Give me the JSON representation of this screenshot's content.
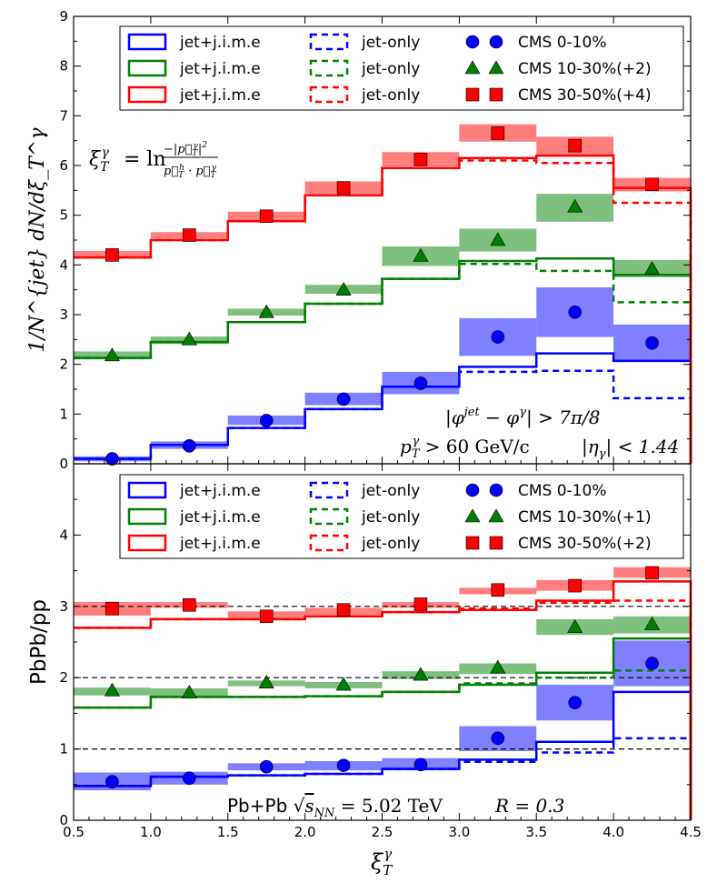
{
  "chart_data": [
    {
      "type": "step",
      "name": "top",
      "ylabel": "1/N^{jet} dN/dξ_T^γ",
      "ylim": [
        0,
        9
      ],
      "xlim": [
        0.5,
        4.5
      ],
      "yticks": [
        "0",
        "1",
        "2",
        "3",
        "4",
        "5",
        "6",
        "7",
        "8",
        "9"
      ],
      "bin_edges": [
        0.5,
        1.0,
        1.5,
        2.0,
        2.5,
        3.0,
        3.5,
        4.0,
        4.5
      ],
      "centers": [
        0.75,
        1.25,
        1.75,
        2.25,
        2.75,
        3.25,
        3.75,
        4.25
      ],
      "formula_lhs": "ξ",
      "formula_sub": "T",
      "formula_sup": "γ",
      "formula_eq": "= ln",
      "formula_num": "−|p⃗",
      "formula_den": "p⃗",
      "formula_num_tail": "|",
      "formula_den_dot": "·",
      "ann_dphi": "|φ",
      "ann_dphi_sup1": "jet",
      "ann_dphi_mid": " − φ",
      "ann_dphi_sup2": "γ",
      "ann_dphi_tail": "| > 7π/8",
      "ann_pt": "p",
      "ann_pt_tail": " > 60 GeV/c",
      "ann_eta": "|η",
      "ann_eta_tail": "| < 1.44",
      "legend": {
        "model_label": "jet+j.i.m.e",
        "jetonly_label": "jet-only",
        "cms_labels": [
          "CMS 0-10%",
          "CMS 10-30%(+2)",
          "CMS 30-50%(+4)"
        ]
      },
      "series": [
        {
          "name": "0-10%",
          "color": "#0000ff",
          "marker": "circle",
          "model": [
            0.1,
            0.38,
            0.72,
            1.1,
            1.55,
            1.95,
            2.22,
            2.07
          ],
          "jet_only": [
            0.1,
            0.38,
            0.72,
            1.1,
            1.55,
            1.85,
            1.87,
            1.32
          ],
          "cms": [
            0.1,
            0.36,
            0.87,
            1.3,
            1.62,
            2.55,
            3.05,
            2.43
          ],
          "band": [
            [
              0.05,
              0.15
            ],
            [
              0.3,
              0.45
            ],
            [
              0.78,
              0.97
            ],
            [
              1.18,
              1.43
            ],
            [
              1.4,
              1.85
            ],
            [
              2.17,
              2.93
            ],
            [
              2.55,
              3.55
            ],
            [
              2.05,
              2.8
            ]
          ]
        },
        {
          "name": "10-30%(+2)",
          "color": "#008000",
          "marker": "triangle",
          "model": [
            2.13,
            2.45,
            2.85,
            3.22,
            3.72,
            4.08,
            4.13,
            3.8
          ],
          "jet_only": [
            2.13,
            2.45,
            2.85,
            3.22,
            3.72,
            4.02,
            3.88,
            3.25
          ],
          "cms": [
            2.18,
            2.5,
            3.05,
            3.5,
            4.18,
            4.5,
            5.17,
            3.92
          ],
          "band": [
            [
              2.1,
              2.26
            ],
            [
              2.41,
              2.56
            ],
            [
              2.98,
              3.12
            ],
            [
              3.42,
              3.6
            ],
            [
              3.98,
              4.37
            ],
            [
              4.27,
              4.73
            ],
            [
              4.87,
              5.43
            ],
            [
              3.75,
              4.1
            ]
          ]
        },
        {
          "name": "30-50%(+4)",
          "color": "#ff0000",
          "marker": "square",
          "model": [
            4.15,
            4.5,
            4.88,
            5.4,
            5.95,
            6.15,
            6.2,
            5.55
          ],
          "jet_only": [
            4.15,
            4.5,
            4.88,
            5.4,
            5.95,
            6.1,
            6.05,
            5.25
          ],
          "cms": [
            4.2,
            4.6,
            4.98,
            5.55,
            6.12,
            6.65,
            6.4,
            5.62
          ],
          "band": [
            [
              4.13,
              4.28
            ],
            [
              4.53,
              4.66
            ],
            [
              4.9,
              5.07
            ],
            [
              5.43,
              5.68
            ],
            [
              5.98,
              6.27
            ],
            [
              6.48,
              6.83
            ],
            [
              6.2,
              6.58
            ],
            [
              5.48,
              5.75
            ]
          ]
        }
      ]
    },
    {
      "type": "step",
      "name": "bottom",
      "ylabel": "PbPb/pp",
      "xlabel": "ξ_T^γ",
      "ylim": [
        0,
        5
      ],
      "xlim": [
        0.5,
        4.5
      ],
      "yticks": [
        "0",
        "1",
        "2",
        "3",
        "4"
      ],
      "xticks": [
        "0.5",
        "1.0",
        "1.5",
        "2.0",
        "2.5",
        "3.0",
        "3.5",
        "4.0",
        "4.5"
      ],
      "bin_edges": [
        0.5,
        1.0,
        1.5,
        2.0,
        2.5,
        3.0,
        3.5,
        4.0,
        4.5
      ],
      "centers": [
        0.75,
        1.25,
        1.75,
        2.25,
        2.75,
        3.25,
        3.75,
        4.25
      ],
      "reference_lines": [
        1,
        2,
        3
      ],
      "ann_system": "Pb+Pb",
      "ann_energy_sqrt": "√",
      "ann_energy_s": "s",
      "ann_energy_sub": "NN",
      "ann_energy_tail": " = 5.02 TeV",
      "ann_r": "R = 0.3",
      "legend": {
        "model_label": "jet+j.i.m.e",
        "jetonly_label": "jet-only",
        "cms_labels": [
          "CMS 0-10%",
          "CMS 10-30%(+1)",
          "CMS 30-50%(+2)"
        ]
      },
      "series": [
        {
          "name": "0-10%",
          "color": "#0000ff",
          "marker": "circle",
          "model": [
            0.48,
            0.61,
            0.63,
            0.65,
            0.72,
            0.85,
            1.1,
            1.8
          ],
          "jet_only": [
            0.48,
            0.61,
            0.63,
            0.65,
            0.72,
            0.82,
            0.95,
            1.15
          ],
          "cms": [
            0.54,
            0.59,
            0.75,
            0.77,
            0.78,
            1.15,
            1.65,
            2.2
          ],
          "band": [
            [
              0.42,
              0.67
            ],
            [
              0.5,
              0.68
            ],
            [
              0.7,
              0.8
            ],
            [
              0.7,
              0.83
            ],
            [
              0.7,
              0.87
            ],
            [
              0.97,
              1.32
            ],
            [
              1.4,
              1.9
            ],
            [
              1.88,
              2.52
            ]
          ]
        },
        {
          "name": "10-30%(+1)",
          "color": "#008000",
          "marker": "triangle",
          "model": [
            1.58,
            1.73,
            1.73,
            1.74,
            1.8,
            1.9,
            2.07,
            2.55
          ],
          "jet_only": [
            1.58,
            1.73,
            1.73,
            1.74,
            1.8,
            1.92,
            2.0,
            2.1
          ],
          "cms": [
            1.82,
            1.79,
            1.93,
            1.9,
            2.04,
            2.14,
            2.71,
            2.75
          ],
          "band": [
            [
              1.75,
              1.86
            ],
            [
              1.74,
              1.85
            ],
            [
              1.88,
              1.96
            ],
            [
              1.85,
              1.94
            ],
            [
              1.98,
              2.09
            ],
            [
              2.05,
              2.2
            ],
            [
              2.6,
              2.82
            ],
            [
              2.62,
              2.86
            ]
          ]
        },
        {
          "name": "30-50%(+2)",
          "color": "#ff0000",
          "marker": "square",
          "model": [
            2.7,
            2.82,
            2.82,
            2.86,
            2.92,
            2.95,
            3.08,
            3.35
          ],
          "jet_only": [
            2.7,
            2.82,
            2.82,
            2.86,
            2.92,
            2.97,
            3.05,
            3.08
          ],
          "cms": [
            2.97,
            3.02,
            2.86,
            2.95,
            3.03,
            3.23,
            3.29,
            3.47
          ],
          "band": [
            [
              2.87,
              3.06
            ],
            [
              2.98,
              3.06
            ],
            [
              2.82,
              2.93
            ],
            [
              2.88,
              2.98
            ],
            [
              2.98,
              3.06
            ],
            [
              3.17,
              3.26
            ],
            [
              3.22,
              3.37
            ],
            [
              3.4,
              3.55
            ]
          ]
        }
      ]
    }
  ]
}
